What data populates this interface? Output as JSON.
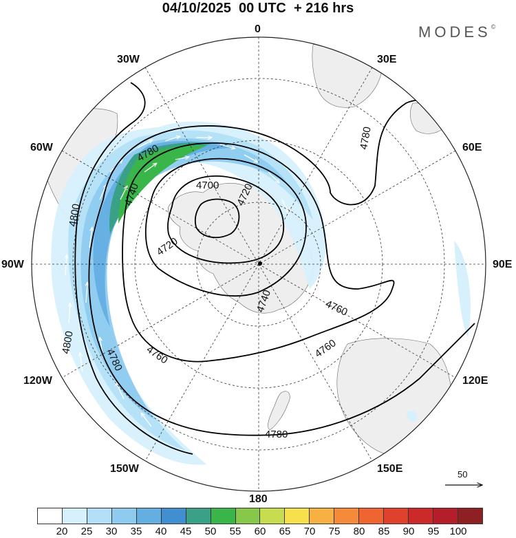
{
  "header": {
    "title": "04/10/2025  00 UTC  + 216 hrs",
    "brand": "MODES",
    "brand_mark": "©"
  },
  "map": {
    "projection": "south polar stereographic",
    "longitude_labels": {
      "top": "0",
      "top_right": "30E",
      "right_upper": "60E",
      "right": "90E",
      "right_lower": "120E",
      "bottom_right": "150E",
      "bottom": "180",
      "bottom_left": "150W",
      "left_lower": "120W",
      "left": "90W",
      "left_upper": "60W",
      "top_left": "30W"
    },
    "contour_labels": [
      "4700",
      "4720",
      "4720",
      "4740",
      "4740",
      "4760",
      "4760",
      "4760",
      "4780",
      "4780",
      "4780",
      "4780",
      "4800",
      "4800"
    ],
    "reference_vector": "50"
  },
  "legend": {
    "colors": [
      "#ffffff",
      "#d6f0fc",
      "#b3e0f7",
      "#8ecbef",
      "#64aee2",
      "#418fd0",
      "#3aa186",
      "#3ab54a",
      "#87c84a",
      "#c7dc4f",
      "#f7e04c",
      "#f7b042",
      "#f58a3b",
      "#ef6532",
      "#e0412c",
      "#cc2a2a",
      "#b41e2b",
      "#8e1f23"
    ],
    "ticks": [
      "20",
      "25",
      "30",
      "35",
      "40",
      "45",
      "50",
      "55",
      "60",
      "65",
      "70",
      "75",
      "80",
      "85",
      "90",
      "95",
      "100"
    ]
  },
  "colors": {
    "land": "#eeeeee",
    "contour": "#000000",
    "grid": "#333333"
  }
}
